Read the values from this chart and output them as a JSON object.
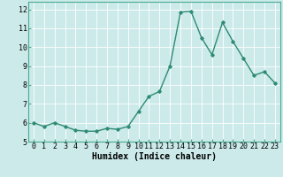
{
  "x": [
    0,
    1,
    2,
    3,
    4,
    5,
    6,
    7,
    8,
    9,
    10,
    11,
    12,
    13,
    14,
    15,
    16,
    17,
    18,
    19,
    20,
    21,
    22,
    23
  ],
  "y": [
    6.0,
    5.8,
    6.0,
    5.8,
    5.6,
    5.55,
    5.55,
    5.7,
    5.65,
    5.8,
    6.6,
    7.4,
    7.65,
    9.0,
    11.85,
    11.9,
    10.5,
    9.6,
    11.3,
    10.3,
    9.4,
    8.5,
    8.7,
    8.1
  ],
  "line_color": "#2e8b74",
  "marker": "D",
  "markersize": 1.8,
  "linewidth": 1.0,
  "xlabel": "Humidex (Indice chaleur)",
  "xlim": [
    -0.5,
    23.5
  ],
  "ylim": [
    5.0,
    12.4
  ],
  "yticks": [
    5,
    6,
    7,
    8,
    9,
    10,
    11,
    12
  ],
  "xticks": [
    0,
    1,
    2,
    3,
    4,
    5,
    6,
    7,
    8,
    9,
    10,
    11,
    12,
    13,
    14,
    15,
    16,
    17,
    18,
    19,
    20,
    21,
    22,
    23
  ],
  "bg_color": "#cceaea",
  "grid_color": "#ffffff",
  "grid_linewidth": 0.6,
  "xlabel_fontsize": 7.0,
  "tick_fontsize": 6.0,
  "border_color": "#4aaa90"
}
